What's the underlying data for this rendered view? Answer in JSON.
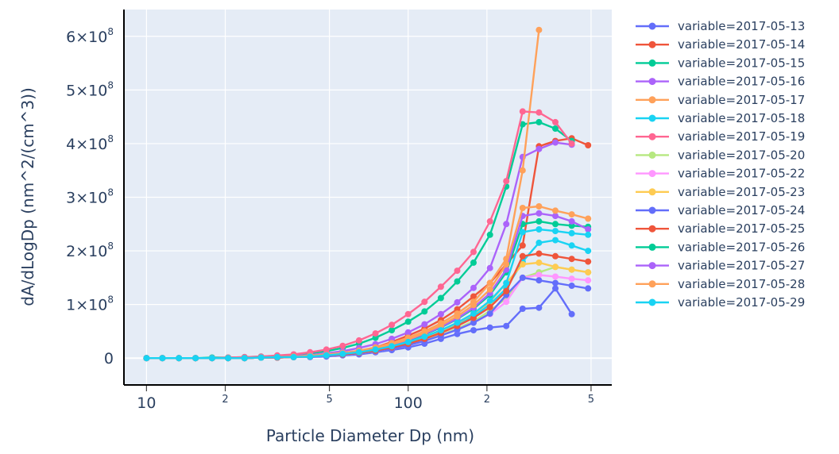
{
  "chart_data": {
    "type": "line",
    "xlabel": "Particle Diameter Dp (nm)",
    "ylabel": "dA/dLogDp (nm^2/(cm^3))",
    "x_scale": "log",
    "xlim": [
      8.2,
      600
    ],
    "ylim": [
      -50000000,
      650000000
    ],
    "x_ticks": [
      {
        "value": 10,
        "label": "10",
        "major": true
      },
      {
        "value": 20,
        "label": "2",
        "major": false
      },
      {
        "value": 50,
        "label": "5",
        "major": false
      },
      {
        "value": 100,
        "label": "100",
        "major": true
      },
      {
        "value": 200,
        "label": "2",
        "major": false
      },
      {
        "value": 500,
        "label": "5",
        "major": false
      }
    ],
    "y_ticks": [
      {
        "value": 0,
        "base": "0",
        "exp": ""
      },
      {
        "value": 100000000,
        "base": "1×10",
        "exp": "8"
      },
      {
        "value": 200000000,
        "base": "2×10",
        "exp": "8"
      },
      {
        "value": 300000000,
        "base": "3×10",
        "exp": "8"
      },
      {
        "value": 400000000,
        "base": "4×10",
        "exp": "8"
      },
      {
        "value": 500000000,
        "base": "5×10",
        "exp": "8"
      },
      {
        "value": 600000000,
        "base": "6×10",
        "exp": "8"
      }
    ],
    "grid": true,
    "legend_position": "right",
    "x": [
      10,
      11.5,
      13.3,
      15.4,
      17.8,
      20.5,
      23.7,
      27.4,
      31.6,
      36.5,
      42.2,
      48.7,
      56.2,
      64.9,
      75,
      86.6,
      100,
      115.5,
      133.4,
      154,
      177.8,
      205.4,
      237.1,
      273.8,
      316.2,
      365.2,
      421.7,
      487
    ],
    "series": [
      {
        "name": "variable=2017-05-13",
        "color": "#636efa",
        "values": [
          0,
          0,
          0,
          0,
          0,
          0,
          0,
          1000000,
          1000000,
          2000000,
          2000000,
          3000000,
          5000000,
          7000000,
          11000000,
          15000000,
          20000000,
          27000000,
          36000000,
          45000000,
          52000000,
          57000000,
          60000000,
          92000000,
          94000000,
          130000000,
          82000000,
          null
        ]
      },
      {
        "name": "variable=2017-05-14",
        "color": "#ef553b",
        "values": [
          0,
          0,
          0,
          0,
          0,
          0,
          0,
          1000000,
          2000000,
          3000000,
          4000000,
          6000000,
          9000000,
          13000000,
          20000000,
          30000000,
          42000000,
          55000000,
          71000000,
          91000000,
          115000000,
          140000000,
          175000000,
          210000000,
          395000000,
          405000000,
          410000000,
          397000000
        ]
      },
      {
        "name": "variable=2017-05-15",
        "color": "#00cc96",
        "values": [
          0,
          0,
          0,
          0,
          1000000,
          1000000,
          2000000,
          3000000,
          4000000,
          6000000,
          9000000,
          13000000,
          19000000,
          27000000,
          38000000,
          52000000,
          68000000,
          87000000,
          112000000,
          143000000,
          178000000,
          230000000,
          320000000,
          436000000,
          440000000,
          428000000,
          405000000,
          null
        ]
      },
      {
        "name": "variable=2017-05-16",
        "color": "#ab63fa",
        "values": [
          0,
          0,
          0,
          0,
          0,
          0,
          1000000,
          2000000,
          3000000,
          4000000,
          6000000,
          9000000,
          13000000,
          19000000,
          26000000,
          36000000,
          48000000,
          63000000,
          82000000,
          104000000,
          131000000,
          168000000,
          250000000,
          375000000,
          390000000,
          402000000,
          398000000,
          null
        ]
      },
      {
        "name": "variable=2017-05-17",
        "color": "#ffa15a",
        "values": [
          0,
          0,
          0,
          0,
          0,
          0,
          0,
          1000000,
          2000000,
          3000000,
          5000000,
          7000000,
          10000000,
          14000000,
          20000000,
          28000000,
          38000000,
          50000000,
          65000000,
          83000000,
          105000000,
          140000000,
          185000000,
          350000000,
          612000000,
          null,
          null,
          null
        ]
      },
      {
        "name": "variable=2017-05-18",
        "color": "#19d3f3",
        "values": [
          0,
          0,
          0,
          0,
          0,
          0,
          0,
          1000000,
          1000000,
          2000000,
          3000000,
          5000000,
          7000000,
          10000000,
          15000000,
          21000000,
          29000000,
          39000000,
          50000000,
          63000000,
          78000000,
          100000000,
          130000000,
          180000000,
          215000000,
          220000000,
          210000000,
          200000000
        ]
      },
      {
        "name": "variable=2017-05-19",
        "color": "#ff6692",
        "values": [
          0,
          0,
          0,
          0,
          0,
          1000000,
          2000000,
          3000000,
          5000000,
          7000000,
          11000000,
          16000000,
          23000000,
          33000000,
          46000000,
          62000000,
          82000000,
          105000000,
          133000000,
          163000000,
          198000000,
          255000000,
          330000000,
          460000000,
          458000000,
          440000000,
          400000000,
          null
        ]
      },
      {
        "name": "variable=2017-05-20",
        "color": "#b6e880",
        "values": [
          0,
          0,
          0,
          0,
          0,
          0,
          0,
          1000000,
          1000000,
          2000000,
          3000000,
          4000000,
          6000000,
          9000000,
          13000000,
          18000000,
          25000000,
          33000000,
          43000000,
          55000000,
          69000000,
          88000000,
          112000000,
          150000000,
          160000000,
          170000000,
          165000000,
          160000000
        ]
      },
      {
        "name": "variable=2017-05-22",
        "color": "#ff97ff",
        "values": [
          0,
          0,
          0,
          0,
          0,
          0,
          0,
          1000000,
          1000000,
          2000000,
          3000000,
          4000000,
          6000000,
          9000000,
          13000000,
          18000000,
          24000000,
          32000000,
          42000000,
          53000000,
          66000000,
          82000000,
          105000000,
          150000000,
          155000000,
          152000000,
          148000000,
          145000000
        ]
      },
      {
        "name": "variable=2017-05-23",
        "color": "#fecb52",
        "values": [
          0,
          0,
          0,
          0,
          0,
          0,
          0,
          1000000,
          2000000,
          2000000,
          3000000,
          5000000,
          7000000,
          10000000,
          15000000,
          21000000,
          29000000,
          39000000,
          51000000,
          65000000,
          82000000,
          105000000,
          140000000,
          175000000,
          178000000,
          170000000,
          165000000,
          160000000
        ]
      },
      {
        "name": "variable=2017-05-24",
        "color": "#636efa",
        "values": [
          0,
          0,
          0,
          0,
          0,
          0,
          0,
          1000000,
          1000000,
          2000000,
          3000000,
          4000000,
          6000000,
          9000000,
          13000000,
          18000000,
          24000000,
          32000000,
          42000000,
          53000000,
          66000000,
          83000000,
          118000000,
          150000000,
          145000000,
          140000000,
          135000000,
          130000000
        ]
      },
      {
        "name": "variable=2017-05-25",
        "color": "#ef553b",
        "values": [
          0,
          0,
          0,
          0,
          0,
          0,
          0,
          1000000,
          1000000,
          2000000,
          3000000,
          5000000,
          7000000,
          10000000,
          14000000,
          20000000,
          27000000,
          36000000,
          47000000,
          60000000,
          75000000,
          95000000,
          125000000,
          190000000,
          195000000,
          190000000,
          185000000,
          180000000
        ]
      },
      {
        "name": "variable=2017-05-26",
        "color": "#00cc96",
        "values": [
          0,
          0,
          0,
          0,
          0,
          0,
          0,
          1000000,
          2000000,
          3000000,
          4000000,
          6000000,
          8000000,
          12000000,
          17000000,
          24000000,
          33000000,
          44000000,
          57000000,
          73000000,
          92000000,
          118000000,
          160000000,
          250000000,
          255000000,
          250000000,
          247000000,
          245000000
        ]
      },
      {
        "name": "variable=2017-05-27",
        "color": "#ab63fa",
        "values": [
          0,
          0,
          0,
          0,
          0,
          0,
          0,
          1000000,
          2000000,
          3000000,
          4000000,
          6000000,
          9000000,
          13000000,
          18000000,
          25000000,
          34000000,
          45000000,
          58000000,
          74000000,
          94000000,
          121000000,
          165000000,
          265000000,
          270000000,
          265000000,
          255000000,
          240000000
        ]
      },
      {
        "name": "variable=2017-05-28",
        "color": "#ffa15a",
        "values": [
          0,
          0,
          0,
          0,
          0,
          0,
          0,
          1000000,
          2000000,
          3000000,
          4000000,
          6000000,
          9000000,
          13000000,
          19000000,
          26000000,
          35000000,
          47000000,
          61000000,
          78000000,
          99000000,
          128000000,
          175000000,
          280000000,
          283000000,
          275000000,
          268000000,
          260000000
        ]
      },
      {
        "name": "variable=2017-05-29",
        "color": "#19d3f3",
        "values": [
          0,
          0,
          0,
          0,
          0,
          0,
          0,
          1000000,
          2000000,
          2000000,
          3000000,
          5000000,
          8000000,
          11000000,
          16000000,
          22000000,
          30000000,
          40000000,
          52000000,
          66000000,
          83000000,
          107000000,
          140000000,
          235000000,
          240000000,
          237000000,
          233000000,
          230000000
        ]
      }
    ]
  }
}
